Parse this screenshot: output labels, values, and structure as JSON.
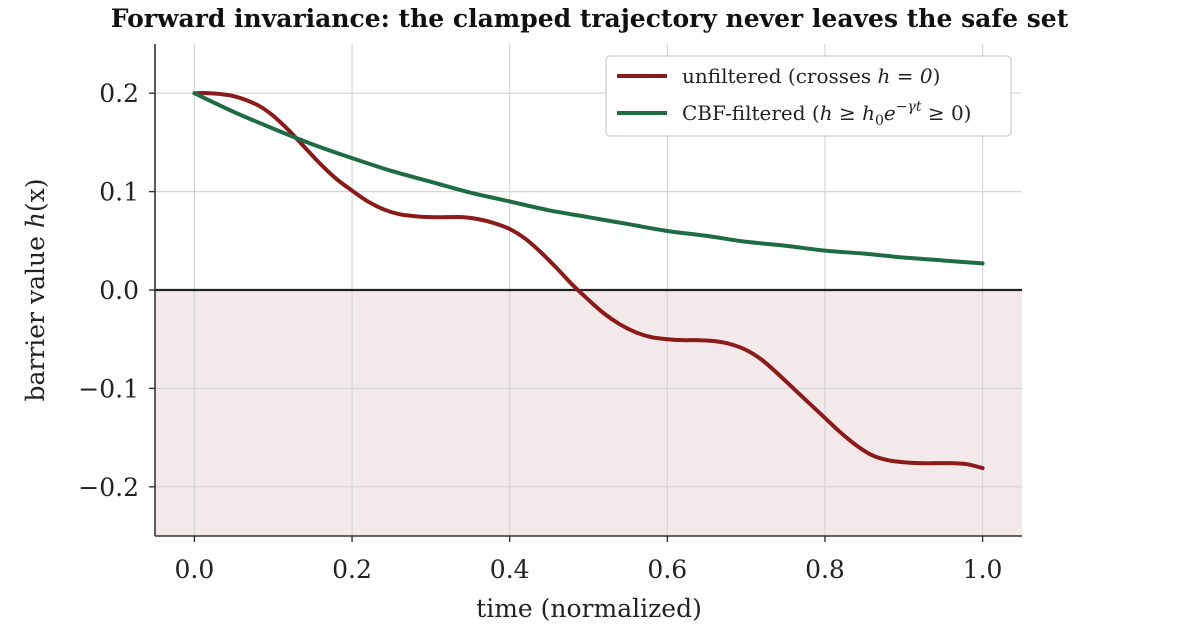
{
  "chart_data": {
    "type": "line",
    "title": "Forward invariance: the clamped trajectory never leaves the safe set",
    "xlabel": "time (normalized)",
    "ylabel": "barrier value h(x)",
    "xlim": [
      -0.05,
      1.05
    ],
    "ylim": [
      -0.25,
      0.25
    ],
    "xticks": [
      0.0,
      0.2,
      0.4,
      0.6,
      0.8,
      1.0
    ],
    "xtick_labels": [
      "0.0",
      "0.2",
      "0.4",
      "0.6",
      "0.8",
      "1.0"
    ],
    "yticks": [
      -0.2,
      -0.1,
      0.0,
      0.1,
      0.2
    ],
    "ytick_labels": [
      "−0.2",
      "−0.1",
      "0.0",
      "0.1",
      "0.2"
    ],
    "grid": true,
    "legend_position": "upper-right",
    "zero_line": 0.0,
    "unsafe_region": {
      "y_from": -0.25,
      "y_to": 0.0,
      "color": "#f3e9ea"
    },
    "series": [
      {
        "name": "unfiltered (crosses h = 0)",
        "color": "#8b1a1a",
        "x": [
          0.0,
          0.02,
          0.05,
          0.08,
          0.1,
          0.12,
          0.14,
          0.16,
          0.18,
          0.2,
          0.22,
          0.24,
          0.26,
          0.28,
          0.3,
          0.32,
          0.34,
          0.36,
          0.38,
          0.4,
          0.42,
          0.44,
          0.46,
          0.48,
          0.5,
          0.52,
          0.54,
          0.56,
          0.58,
          0.6,
          0.62,
          0.64,
          0.66,
          0.68,
          0.7,
          0.72,
          0.74,
          0.76,
          0.78,
          0.8,
          0.82,
          0.84,
          0.86,
          0.88,
          0.9,
          0.92,
          0.94,
          0.96,
          0.98,
          1.0
        ],
        "y": [
          0.2,
          0.2,
          0.197,
          0.188,
          0.177,
          0.162,
          0.145,
          0.128,
          0.113,
          0.101,
          0.09,
          0.082,
          0.077,
          0.075,
          0.074,
          0.074,
          0.074,
          0.072,
          0.068,
          0.062,
          0.052,
          0.038,
          0.022,
          0.005,
          -0.01,
          -0.024,
          -0.035,
          -0.043,
          -0.048,
          -0.05,
          -0.051,
          -0.051,
          -0.052,
          -0.055,
          -0.061,
          -0.071,
          -0.085,
          -0.1,
          -0.115,
          -0.13,
          -0.145,
          -0.158,
          -0.168,
          -0.173,
          -0.175,
          -0.176,
          -0.176,
          -0.176,
          -0.177,
          -0.181
        ]
      },
      {
        "name": "CBF-filtered (h ≥ h₀e^(−γt) ≥ 0)",
        "color": "#1e6b45",
        "x": [
          0.0,
          0.05,
          0.1,
          0.15,
          0.2,
          0.25,
          0.3,
          0.35,
          0.4,
          0.45,
          0.5,
          0.55,
          0.6,
          0.65,
          0.7,
          0.75,
          0.8,
          0.85,
          0.9,
          0.95,
          1.0
        ],
        "y": [
          0.2,
          0.181,
          0.164,
          0.148,
          0.134,
          0.121,
          0.11,
          0.099,
          0.09,
          0.081,
          0.074,
          0.067,
          0.06,
          0.055,
          0.049,
          0.045,
          0.04,
          0.037,
          0.033,
          0.03,
          0.027
        ]
      }
    ]
  },
  "legend": {
    "series0_text": "unfiltered (crosses ",
    "series0_math": "h = 0",
    "series0_close": ")",
    "series1_text": "CBF-filtered (",
    "series1_math_h": "h",
    "series1_math_geq": " ≥ ",
    "series1_math_h0": "h",
    "series1_math_sub": "0",
    "series1_math_e": "e",
    "series1_math_sup": "−γt",
    "series1_math_rest": " ≥ 0)"
  },
  "axis": {
    "ylabel_text": "barrier value ",
    "ylabel_math": "h",
    "ylabel_arg": "(x)"
  }
}
